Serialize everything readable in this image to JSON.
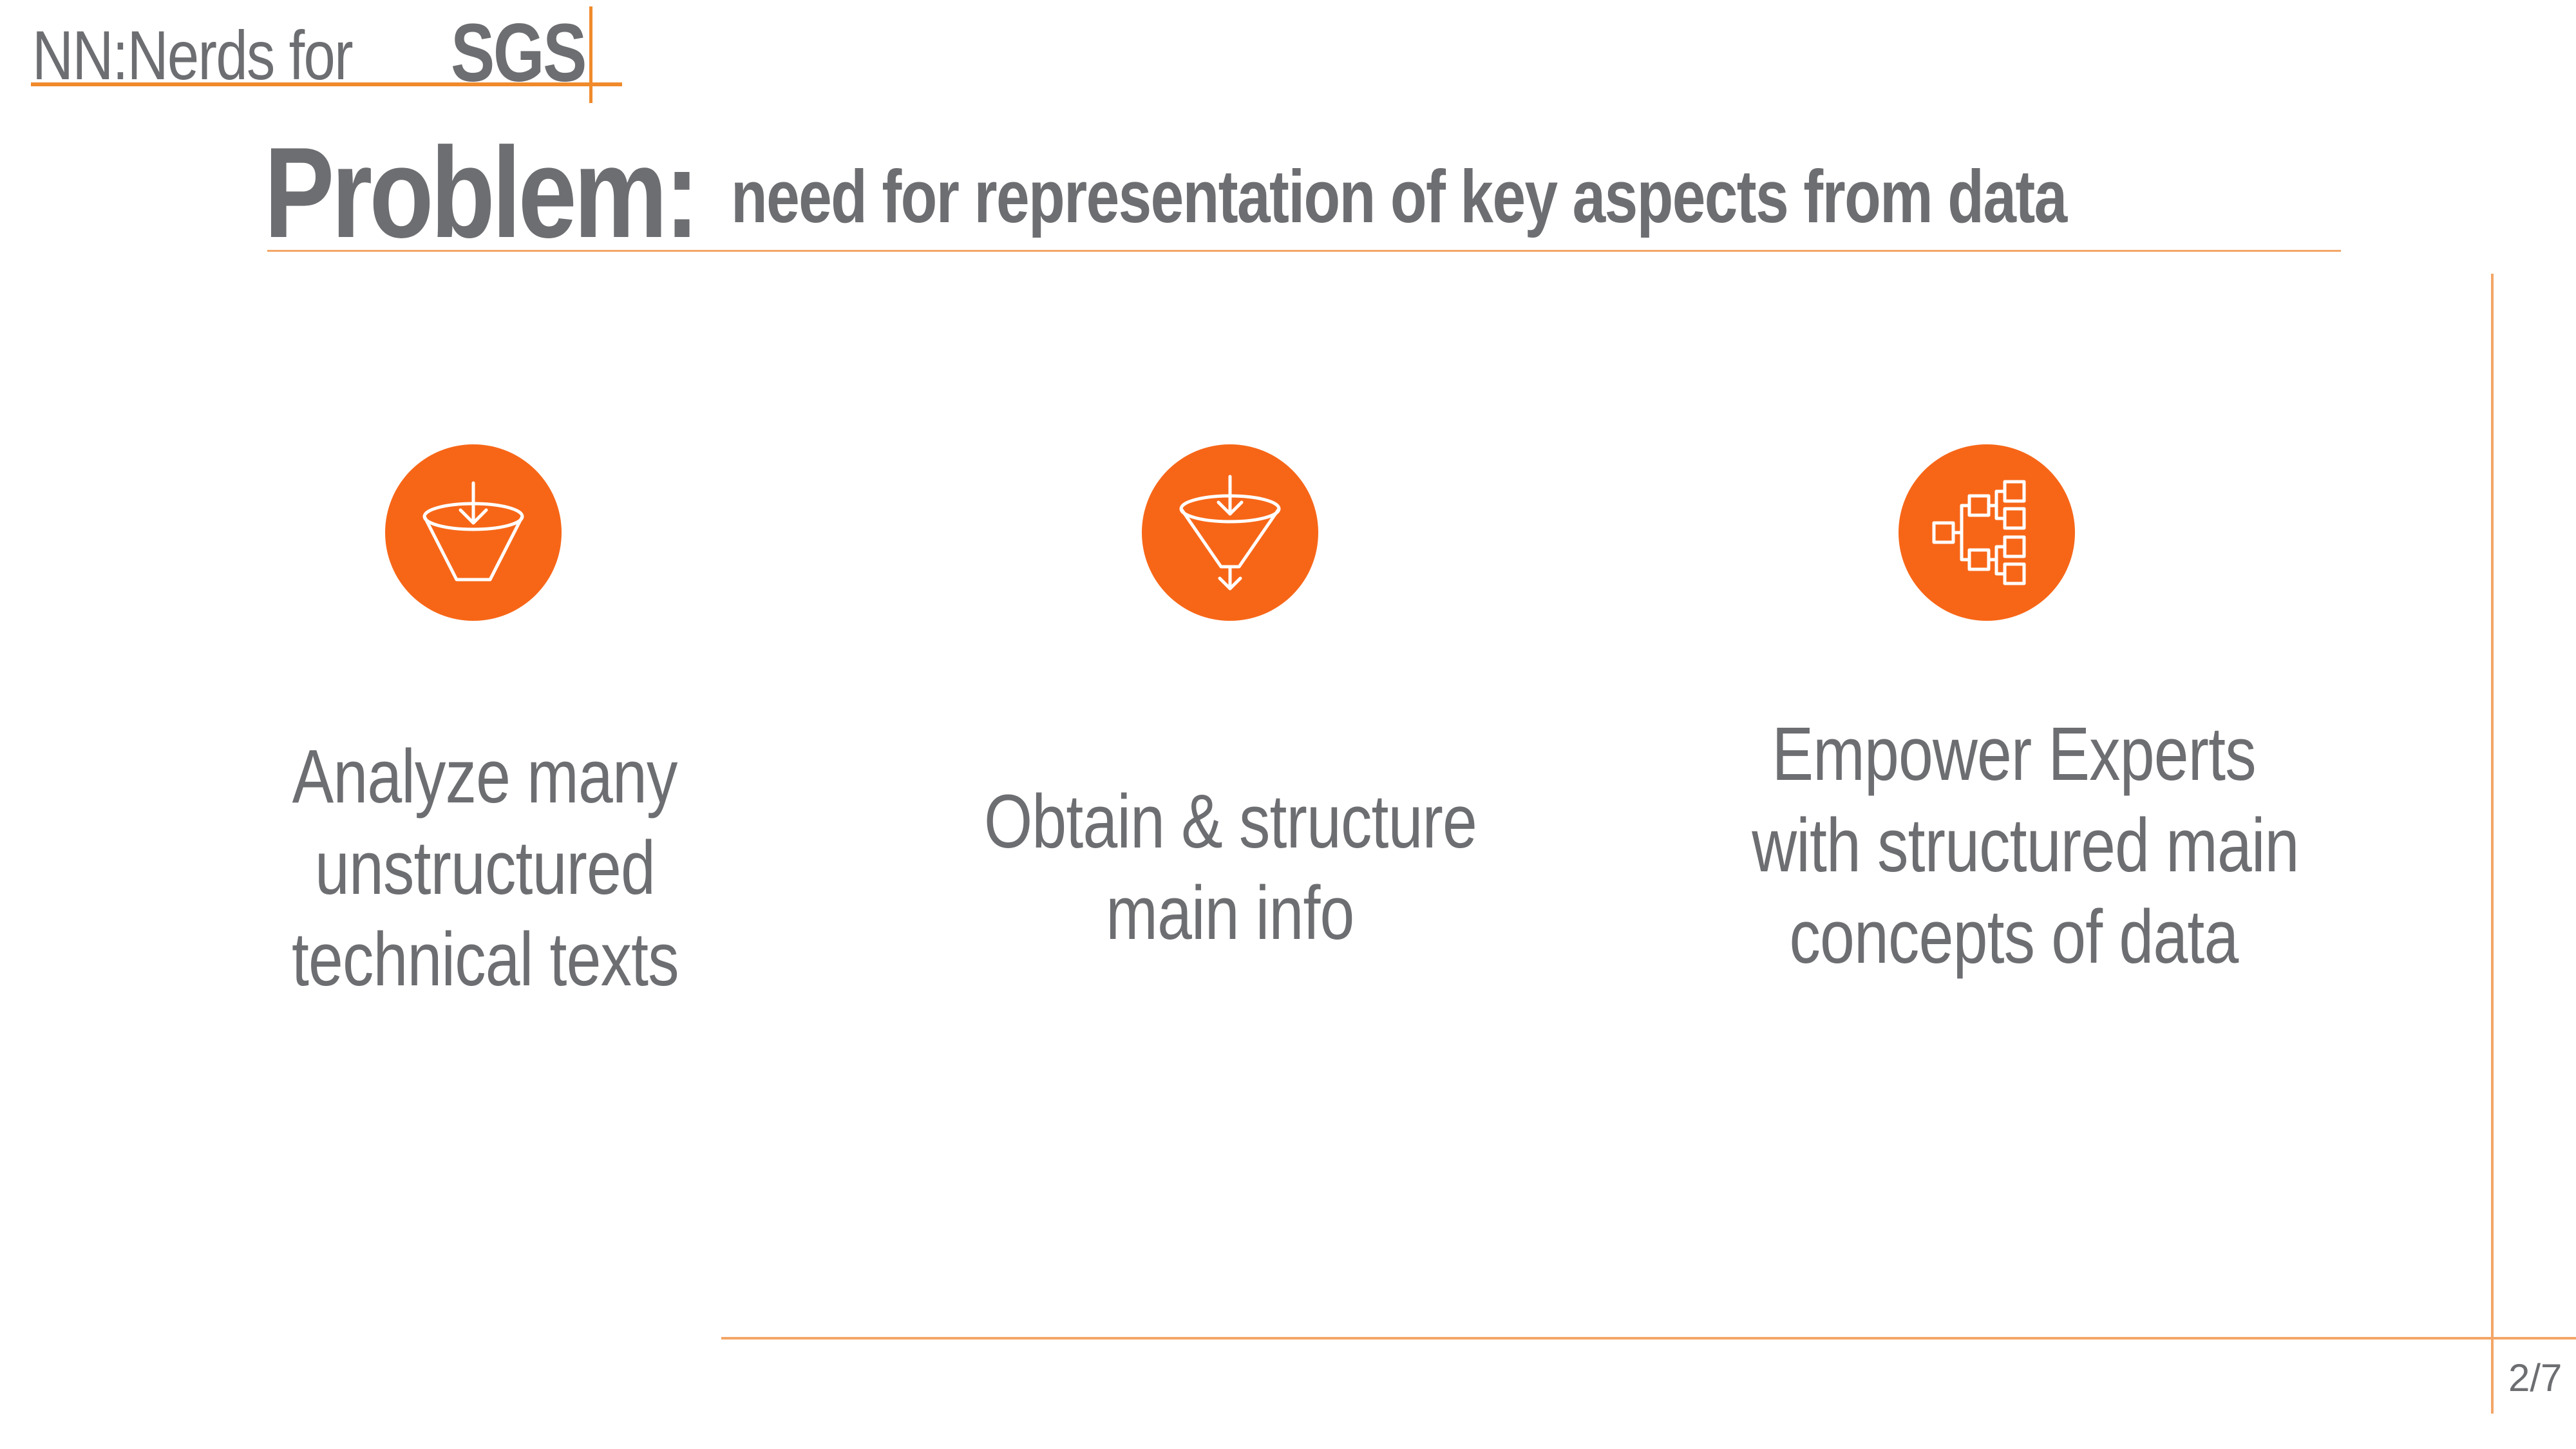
{
  "brand": {
    "prefix": "NN:Nerds for",
    "mark": "SGS"
  },
  "slide": {
    "title": "Problem:",
    "subtitle": "need for representation of key aspects from data",
    "page_number": "2/7"
  },
  "columns": [
    {
      "icon": "funnel-input-icon",
      "lines": [
        "Analyze many",
        "unstructured",
        "technical texts"
      ]
    },
    {
      "icon": "funnel-filter-icon",
      "lines": [
        "Obtain & structure",
        "main info"
      ]
    },
    {
      "icon": "hierarchy-tree-icon",
      "lines": [
        "Empower Experts",
        "with structured main",
        "concepts of data"
      ]
    }
  ],
  "colors": {
    "accent": "#f76617",
    "rule": "#f3a667",
    "text": "#6d6e71"
  }
}
